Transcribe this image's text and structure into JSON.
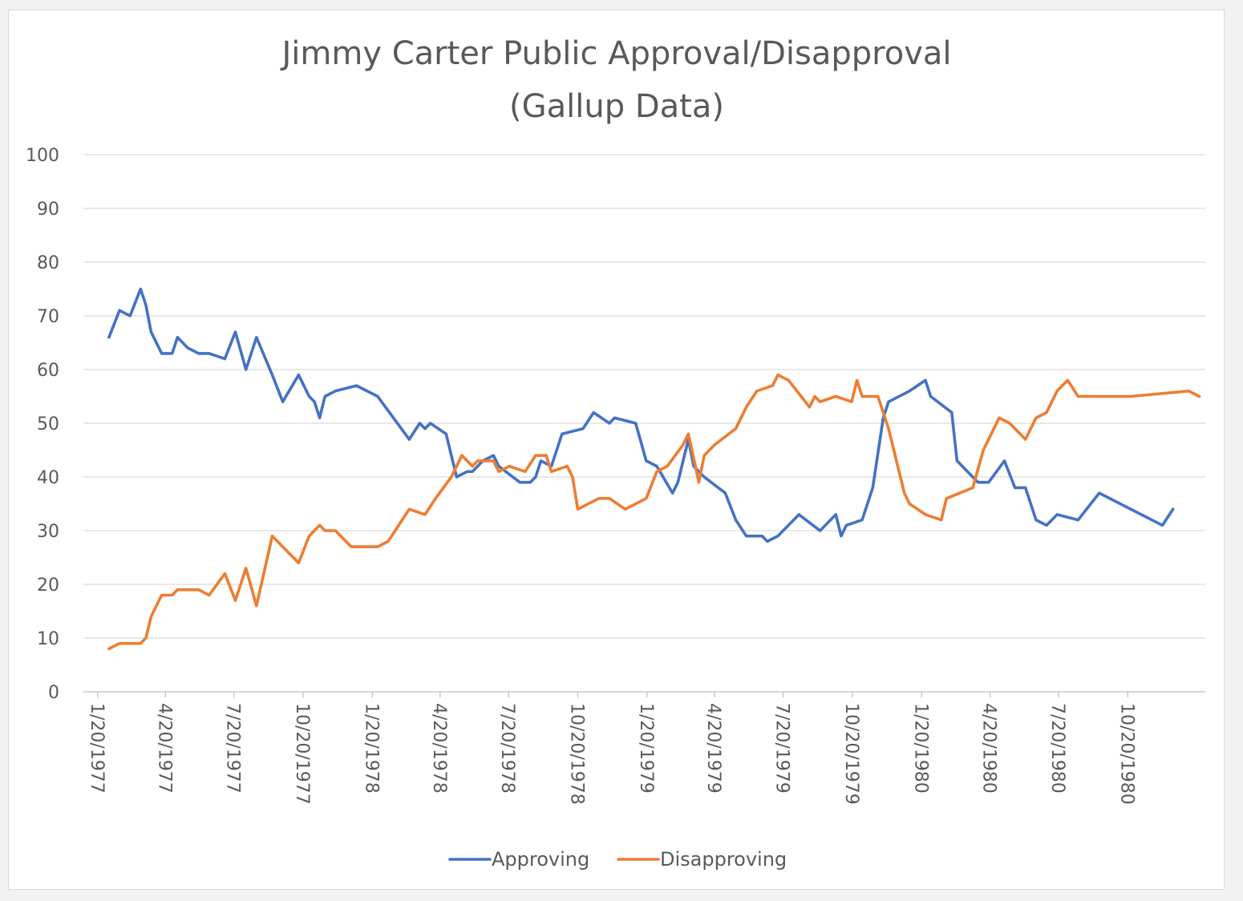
{
  "chart_data": {
    "type": "line",
    "title": [
      "Jimmy Carter Public Approval/Disapproval",
      "(Gallup Data)"
    ],
    "xlabel": "",
    "ylabel": "",
    "ylim": [
      0,
      100
    ],
    "yticks": [
      0,
      10,
      20,
      30,
      40,
      50,
      60,
      70,
      80,
      90,
      100
    ],
    "xlim": [
      "1977-01-01",
      "1981-01-31"
    ],
    "xticks": [
      {
        "label": "1/20/1977",
        "date": "1977-01-20"
      },
      {
        "label": "4/20/1977",
        "date": "1977-04-20"
      },
      {
        "label": "7/20/1977",
        "date": "1977-07-20"
      },
      {
        "label": "10/20/1977",
        "date": "1977-10-20"
      },
      {
        "label": "1/20/1978",
        "date": "1978-01-20"
      },
      {
        "label": "4/20/1978",
        "date": "1978-04-20"
      },
      {
        "label": "7/20/1978",
        "date": "1978-07-20"
      },
      {
        "label": "10/20/1978",
        "date": "1978-10-20"
      },
      {
        "label": "1/20/1979",
        "date": "1979-01-20"
      },
      {
        "label": "4/20/1979",
        "date": "1979-04-20"
      },
      {
        "label": "7/20/1979",
        "date": "1979-07-20"
      },
      {
        "label": "10/20/1979",
        "date": "1979-10-20"
      },
      {
        "label": "1/20/1980",
        "date": "1980-01-20"
      },
      {
        "label": "4/20/1980",
        "date": "1980-04-20"
      },
      {
        "label": "7/20/1980",
        "date": "1980-07-20"
      },
      {
        "label": "10/20/1980",
        "date": "1980-10-20"
      }
    ],
    "grid": true,
    "legend_position": "bottom",
    "series": [
      {
        "name": "Approving",
        "color": "#4472C4",
        "points": [
          [
            "1977-02-04",
            66
          ],
          [
            "1977-02-18",
            71
          ],
          [
            "1977-03-04",
            70
          ],
          [
            "1977-03-18",
            75
          ],
          [
            "1977-03-25",
            72
          ],
          [
            "1977-04-01",
            67
          ],
          [
            "1977-04-15",
            63
          ],
          [
            "1977-04-29",
            63
          ],
          [
            "1977-05-06",
            66
          ],
          [
            "1977-05-20",
            64
          ],
          [
            "1977-06-03",
            63
          ],
          [
            "1977-06-17",
            63
          ],
          [
            "1977-07-08",
            62
          ],
          [
            "1977-07-22",
            67
          ],
          [
            "1977-08-05",
            60
          ],
          [
            "1977-08-19",
            66
          ],
          [
            "1977-09-09",
            59
          ],
          [
            "1977-09-23",
            54
          ],
          [
            "1977-10-14",
            59
          ],
          [
            "1977-10-28",
            55
          ],
          [
            "1977-11-04",
            54
          ],
          [
            "1977-11-11",
            51
          ],
          [
            "1977-11-18",
            55
          ],
          [
            "1977-12-02",
            56
          ],
          [
            "1977-12-30",
            57
          ],
          [
            "1978-01-27",
            55
          ],
          [
            "1978-02-17",
            51
          ],
          [
            "1978-03-10",
            47
          ],
          [
            "1978-03-24",
            50
          ],
          [
            "1978-03-31",
            49
          ],
          [
            "1978-04-07",
            50
          ],
          [
            "1978-04-28",
            48
          ],
          [
            "1978-05-05",
            44
          ],
          [
            "1978-05-12",
            40
          ],
          [
            "1978-05-26",
            41
          ],
          [
            "1978-06-02",
            41
          ],
          [
            "1978-06-16",
            43
          ],
          [
            "1978-06-30",
            44
          ],
          [
            "1978-07-07",
            42
          ],
          [
            "1978-08-04",
            39
          ],
          [
            "1978-08-18",
            39
          ],
          [
            "1978-08-25",
            40
          ],
          [
            "1978-09-01",
            43
          ],
          [
            "1978-09-15",
            42
          ],
          [
            "1978-09-29",
            48
          ],
          [
            "1978-10-27",
            49
          ],
          [
            "1978-11-10",
            52
          ],
          [
            "1978-12-01",
            50
          ],
          [
            "1978-12-08",
            51
          ],
          [
            "1979-01-05",
            50
          ],
          [
            "1979-01-19",
            43
          ],
          [
            "1979-02-02",
            42
          ],
          [
            "1979-02-23",
            37
          ],
          [
            "1979-03-02",
            39
          ],
          [
            "1979-03-16",
            47
          ],
          [
            "1979-03-23",
            42
          ],
          [
            "1979-04-06",
            40
          ],
          [
            "1979-05-04",
            37
          ],
          [
            "1979-05-18",
            32
          ],
          [
            "1979-06-01",
            29
          ],
          [
            "1979-06-22",
            29
          ],
          [
            "1979-06-29",
            28
          ],
          [
            "1979-07-13",
            29
          ],
          [
            "1979-08-10",
            33
          ],
          [
            "1979-09-07",
            30
          ],
          [
            "1979-09-28",
            33
          ],
          [
            "1979-10-05",
            29
          ],
          [
            "1979-10-12",
            31
          ],
          [
            "1979-11-02",
            32
          ],
          [
            "1979-11-16",
            38
          ],
          [
            "1979-11-30",
            51
          ],
          [
            "1979-12-07",
            54
          ],
          [
            "1980-01-04",
            56
          ],
          [
            "1980-01-25",
            58
          ],
          [
            "1980-02-01",
            55
          ],
          [
            "1980-02-29",
            52
          ],
          [
            "1980-03-07",
            43
          ],
          [
            "1980-04-04",
            39
          ],
          [
            "1980-04-18",
            39
          ],
          [
            "1980-05-09",
            43
          ],
          [
            "1980-05-23",
            38
          ],
          [
            "1980-06-06",
            38
          ],
          [
            "1980-06-20",
            32
          ],
          [
            "1980-07-04",
            31
          ],
          [
            "1980-07-18",
            33
          ],
          [
            "1980-08-15",
            32
          ],
          [
            "1980-09-12",
            37
          ],
          [
            "1980-12-05",
            31
          ],
          [
            "1980-12-19",
            34
          ]
        ]
      },
      {
        "name": "Disapproving",
        "color": "#ED7D31",
        "points": [
          [
            "1977-02-04",
            8
          ],
          [
            "1977-02-18",
            9
          ],
          [
            "1977-03-04",
            9
          ],
          [
            "1977-03-18",
            9
          ],
          [
            "1977-03-25",
            10
          ],
          [
            "1977-04-01",
            14
          ],
          [
            "1977-04-15",
            18
          ],
          [
            "1977-04-29",
            18
          ],
          [
            "1977-05-06",
            19
          ],
          [
            "1977-05-20",
            19
          ],
          [
            "1977-06-03",
            19
          ],
          [
            "1977-06-17",
            18
          ],
          [
            "1977-07-08",
            22
          ],
          [
            "1977-07-22",
            17
          ],
          [
            "1977-08-05",
            23
          ],
          [
            "1977-08-19",
            16
          ],
          [
            "1977-09-09",
            29
          ],
          [
            "1977-09-23",
            27
          ],
          [
            "1977-10-14",
            24
          ],
          [
            "1977-10-28",
            29
          ],
          [
            "1977-11-11",
            31
          ],
          [
            "1977-11-18",
            30
          ],
          [
            "1977-12-02",
            30
          ],
          [
            "1977-12-23",
            27
          ],
          [
            "1978-01-27",
            27
          ],
          [
            "1978-02-10",
            28
          ],
          [
            "1978-03-10",
            34
          ],
          [
            "1978-03-31",
            33
          ],
          [
            "1978-04-14",
            36
          ],
          [
            "1978-05-05",
            40
          ],
          [
            "1978-05-19",
            44
          ],
          [
            "1978-06-02",
            42
          ],
          [
            "1978-06-09",
            43
          ],
          [
            "1978-06-30",
            43
          ],
          [
            "1978-07-07",
            41
          ],
          [
            "1978-07-21",
            42
          ],
          [
            "1978-08-11",
            41
          ],
          [
            "1978-08-25",
            44
          ],
          [
            "1978-09-08",
            44
          ],
          [
            "1978-09-15",
            41
          ],
          [
            "1978-10-06",
            42
          ],
          [
            "1978-10-13",
            40
          ],
          [
            "1978-10-20",
            34
          ],
          [
            "1978-11-17",
            36
          ],
          [
            "1978-12-01",
            36
          ],
          [
            "1978-12-22",
            34
          ],
          [
            "1979-01-19",
            36
          ],
          [
            "1979-02-02",
            41
          ],
          [
            "1979-02-16",
            42
          ],
          [
            "1979-03-09",
            46
          ],
          [
            "1979-03-16",
            48
          ],
          [
            "1979-03-30",
            39
          ],
          [
            "1979-04-06",
            44
          ],
          [
            "1979-04-20",
            46
          ],
          [
            "1979-05-18",
            49
          ],
          [
            "1979-06-01",
            53
          ],
          [
            "1979-06-15",
            56
          ],
          [
            "1979-07-06",
            57
          ],
          [
            "1979-07-13",
            59
          ],
          [
            "1979-07-27",
            58
          ],
          [
            "1979-08-24",
            53
          ],
          [
            "1979-08-31",
            55
          ],
          [
            "1979-09-07",
            54
          ],
          [
            "1979-09-28",
            55
          ],
          [
            "1979-10-19",
            54
          ],
          [
            "1979-10-26",
            58
          ],
          [
            "1979-11-02",
            55
          ],
          [
            "1979-11-23",
            55
          ],
          [
            "1979-12-07",
            49
          ],
          [
            "1979-12-28",
            37
          ],
          [
            "1980-01-04",
            35
          ],
          [
            "1980-01-25",
            33
          ],
          [
            "1980-02-15",
            32
          ],
          [
            "1980-02-22",
            36
          ],
          [
            "1980-03-28",
            38
          ],
          [
            "1980-04-11",
            45
          ],
          [
            "1980-05-02",
            51
          ],
          [
            "1980-05-16",
            50
          ],
          [
            "1980-06-06",
            47
          ],
          [
            "1980-06-20",
            51
          ],
          [
            "1980-07-04",
            52
          ],
          [
            "1980-07-18",
            56
          ],
          [
            "1980-08-01",
            58
          ],
          [
            "1980-08-15",
            55
          ],
          [
            "1980-09-26",
            55
          ],
          [
            "1980-10-24",
            55
          ],
          [
            "1981-01-09",
            56
          ],
          [
            "1981-01-23",
            55
          ]
        ]
      }
    ]
  }
}
